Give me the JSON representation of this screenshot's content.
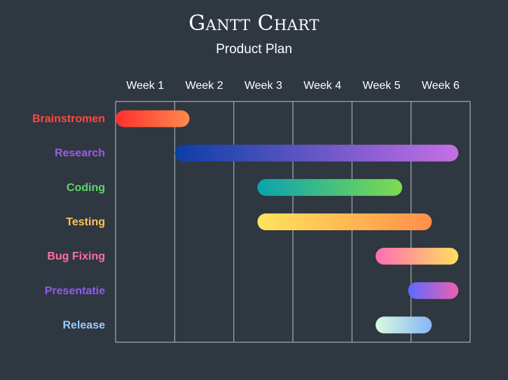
{
  "header": {
    "title": "Gantt Chart",
    "subtitle": "Product Plan"
  },
  "chart_data": {
    "type": "gantt",
    "title": "Gantt Chart",
    "subtitle": "Product Plan",
    "weeks": [
      "Week 1",
      "Week 2",
      "Week 3",
      "Week 4",
      "Week 5",
      "Week 6"
    ],
    "xlim": [
      0,
      6
    ],
    "grid": true,
    "tasks": [
      {
        "name": "Brainstromen",
        "start": 0.0,
        "end": 1.25,
        "label_color": "#ff4a3d",
        "colors": [
          "#ff2e2e",
          "#ff8a4c"
        ]
      },
      {
        "name": "Research",
        "start": 1.0,
        "end": 5.8,
        "label_color": "#9b5de5",
        "colors": [
          "#0a3fa6",
          "#c66ee6"
        ]
      },
      {
        "name": "Coding",
        "start": 2.4,
        "end": 4.85,
        "label_color": "#5ed66b",
        "colors": [
          "#0aa2b0",
          "#7ddc4f"
        ]
      },
      {
        "name": "Testing",
        "start": 2.4,
        "end": 5.35,
        "label_color": "#ffc35a",
        "colors": [
          "#ffe45c",
          "#ff8f4a"
        ]
      },
      {
        "name": "Bug Fixing",
        "start": 4.4,
        "end": 5.8,
        "label_color": "#ff6fa0",
        "colors": [
          "#ff6eb4",
          "#ffdf5e"
        ]
      },
      {
        "name": "Presentatie",
        "start": 4.95,
        "end": 5.8,
        "label_color": "#8e5cf0",
        "colors": [
          "#5a6bff",
          "#ef5fb0"
        ]
      },
      {
        "name": "Release",
        "start": 4.4,
        "end": 5.35,
        "label_color": "#9cc8ff",
        "colors": [
          "#d8fbe0",
          "#86b6f5"
        ]
      }
    ]
  }
}
